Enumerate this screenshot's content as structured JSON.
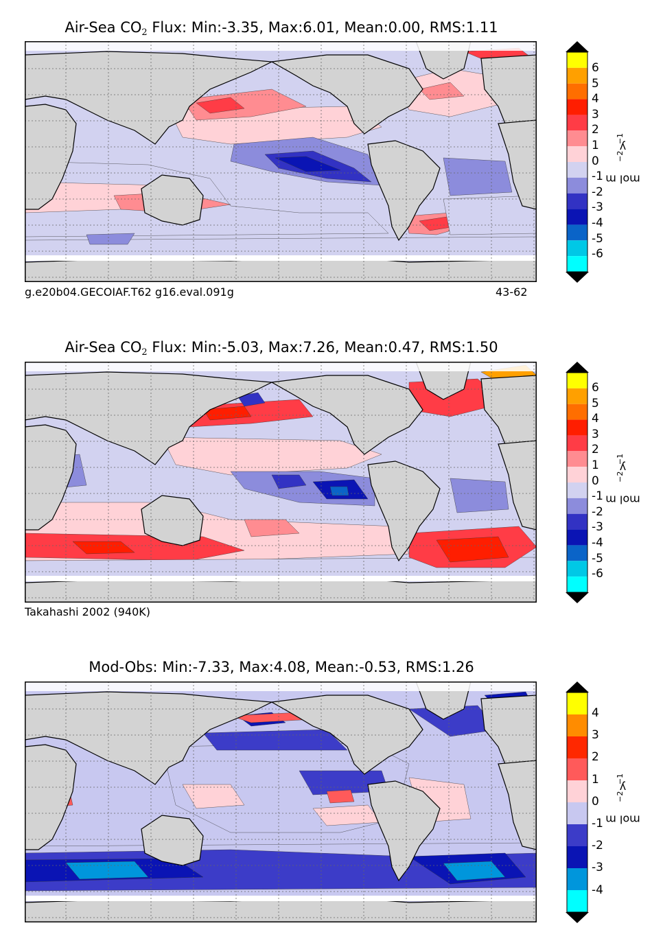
{
  "panels": [
    {
      "title_prefix": "Air-Sea CO",
      "title_sub": "2",
      "title_suffix": " Flux: Min:-3.35, Max:6.01, Mean:0.00, RMS:1.11",
      "caption_left": "g.e20b04.GECOIAF.T62 g16.eval.091g",
      "caption_right": "43-62",
      "colorbar": {
        "units": "mol m",
        "units_exp1": "−2",
        "units_mid": " y",
        "units_exp2": "−1",
        "ticks": [
          "6",
          "5",
          "4",
          "3",
          "2",
          "1",
          "0",
          "-1",
          "-2",
          "-3",
          "-4",
          "-5",
          "-6"
        ]
      }
    },
    {
      "title_prefix": "Air-Sea CO",
      "title_sub": "2",
      "title_suffix": " Flux: Min:-5.03, Max:7.26, Mean:0.47, RMS:1.50",
      "caption_left": "Takahashi 2002 (940K)",
      "caption_right": "",
      "colorbar": {
        "units": "mol m",
        "units_exp1": "−2",
        "units_mid": " y",
        "units_exp2": "−1",
        "ticks": [
          "6",
          "5",
          "4",
          "3",
          "2",
          "1",
          "0",
          "-1",
          "-2",
          "-3",
          "-4",
          "-5",
          "-6"
        ]
      }
    },
    {
      "title_prefix": "Mod-Obs: Min:-7.33, Max:4.08, Mean:-0.53, RMS:1.26",
      "title_sub": "",
      "title_suffix": "",
      "caption_left": "",
      "caption_right": "",
      "colorbar": {
        "units": "mol m",
        "units_exp1": "−2",
        "units_mid": " y",
        "units_exp2": "−1",
        "ticks": [
          "4",
          "3",
          "2",
          "1",
          "0",
          "-1",
          "-2",
          "-3",
          "-4"
        ]
      }
    }
  ],
  "chart_data": [
    {
      "type": "heatmap",
      "title": "Air-Sea CO2 Flux: Min:-3.35, Max:6.01, Mean:0.00, RMS:1.11",
      "stats": {
        "min": -3.35,
        "max": 6.01,
        "mean": 0.0,
        "rms": 1.11
      },
      "colorbar_label": "mol m-2 y-1",
      "levels": [
        -6,
        -5,
        -4,
        -3,
        -2,
        -1,
        0,
        1,
        2,
        3,
        4,
        5,
        6
      ],
      "source": "g.e20b04.GECOIAF.T62 g16.eval.091g",
      "years": "43-62"
    },
    {
      "type": "heatmap",
      "title": "Air-Sea CO2 Flux: Min:-5.03, Max:7.26, Mean:0.47, RMS:1.50",
      "stats": {
        "min": -5.03,
        "max": 7.26,
        "mean": 0.47,
        "rms": 1.5
      },
      "colorbar_label": "mol m-2 y-1",
      "levels": [
        -6,
        -5,
        -4,
        -3,
        -2,
        -1,
        0,
        1,
        2,
        3,
        4,
        5,
        6
      ],
      "source": "Takahashi 2002 (940K)"
    },
    {
      "type": "heatmap",
      "title": "Mod-Obs: Min:-7.33, Max:4.08, Mean:-0.53, RMS:1.26",
      "stats": {
        "min": -7.33,
        "max": 4.08,
        "mean": -0.53,
        "rms": 1.26
      },
      "colorbar_label": "mol m-2 y-1",
      "levels": [
        -4,
        -3,
        -2,
        -1,
        0,
        1,
        2,
        3,
        4
      ]
    }
  ],
  "colors": {
    "cb13": [
      "#00ffff",
      "#00c8e6",
      "#0a64c8",
      "#0a14b4",
      "#3232c3",
      "#8c8cdc",
      "#d2d2f0",
      "#ffd2d7",
      "#ff8c91",
      "#ff3c46",
      "#ff1e00",
      "#ff6e00",
      "#ffa000",
      "#ffff00"
    ],
    "cb9": [
      "#00ffff",
      "#0096dc",
      "#0a14b4",
      "#3c3cc8",
      "#c8c8f0",
      "#ffd2d7",
      "#ff5a5a",
      "#ff2800",
      "#ff8c00",
      "#ffff00"
    ],
    "land": "#d3d3d3",
    "ice": "#ffffff"
  }
}
